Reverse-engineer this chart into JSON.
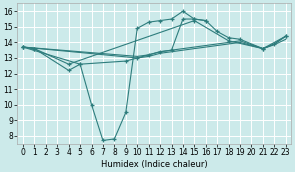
{
  "background_color": "#cceaea",
  "grid_color": "#ffffff",
  "line_color": "#2e7d7d",
  "xlabel": "Humidex (Indice chaleur)",
  "xlim": [
    -0.5,
    23.5
  ],
  "ylim": [
    7.5,
    16.5
  ],
  "xticks": [
    0,
    1,
    2,
    3,
    4,
    5,
    6,
    7,
    8,
    9,
    10,
    11,
    12,
    13,
    14,
    15,
    16,
    17,
    18,
    19,
    20,
    21,
    22,
    23
  ],
  "yticks": [
    8,
    9,
    10,
    11,
    12,
    13,
    14,
    15,
    16
  ],
  "series": [
    {
      "x": [
        0,
        1,
        4,
        15,
        18,
        21,
        23
      ],
      "y": [
        13.7,
        13.6,
        12.6,
        15.4,
        14.1,
        13.6,
        14.4
      ],
      "marker": true
    },
    {
      "x": [
        0,
        1,
        4,
        5,
        9,
        10,
        11,
        12,
        13,
        14,
        15,
        16,
        17,
        18,
        19,
        21,
        22,
        23
      ],
      "y": [
        13.7,
        13.6,
        12.2,
        12.6,
        12.8,
        13.0,
        13.2,
        13.4,
        13.5,
        15.5,
        15.5,
        15.4,
        14.7,
        14.3,
        14.2,
        13.6,
        13.9,
        14.4
      ],
      "marker": true
    },
    {
      "x": [
        0,
        5,
        6,
        7,
        8,
        9,
        10,
        11,
        12,
        13,
        14,
        15,
        16
      ],
      "y": [
        13.7,
        12.6,
        10.0,
        7.7,
        7.8,
        9.5,
        14.9,
        15.3,
        15.4,
        15.5,
        16.0,
        15.5,
        15.4
      ],
      "marker": true
    },
    {
      "x": [
        0,
        10,
        11,
        12,
        13,
        14,
        15,
        16,
        17,
        18,
        19,
        21,
        22,
        23
      ],
      "y": [
        13.7,
        13.1,
        13.2,
        13.4,
        13.5,
        13.6,
        13.7,
        13.8,
        13.9,
        14.0,
        14.1,
        13.6,
        13.9,
        14.4
      ],
      "marker": false
    },
    {
      "x": [
        0,
        10,
        11,
        12,
        13,
        14,
        15,
        16,
        17,
        18,
        19,
        21,
        22,
        23
      ],
      "y": [
        13.7,
        13.0,
        13.1,
        13.3,
        13.4,
        13.5,
        13.6,
        13.7,
        13.8,
        13.9,
        14.0,
        13.6,
        13.85,
        14.2
      ],
      "marker": false
    }
  ]
}
